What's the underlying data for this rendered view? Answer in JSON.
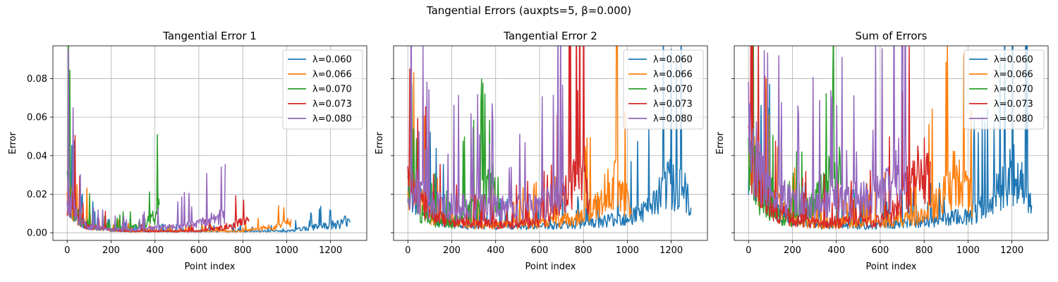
{
  "suptitle": "Tangential Errors (auxpts=5, β=0.000)",
  "series_colors": [
    "#1f77b4",
    "#ff7f0e",
    "#2ca02c",
    "#d62728",
    "#9467bd"
  ],
  "chart_data": [
    {
      "type": "line",
      "title": "Tangential Error 1",
      "xlabel": "Point index",
      "ylabel": "Error",
      "xlim": [
        -65,
        1365
      ],
      "ylim": [
        -0.004,
        0.097
      ],
      "xticks": [
        0,
        200,
        400,
        600,
        800,
        1000,
        1200
      ],
      "yticks": [
        0.0,
        0.02,
        0.04,
        0.06,
        0.08
      ],
      "ytick_labels": [
        "0.00",
        "0.02",
        "0.04",
        "0.06",
        "0.08"
      ],
      "show_yticklabels": true,
      "grid": true,
      "legend": "top-right",
      "series": [
        {
          "name": "λ=0.060",
          "color": "#1f77b4",
          "x": [
            0,
            50,
            100,
            200,
            300,
            400,
            500,
            600,
            700,
            800,
            900,
            1000,
            1050,
            1100,
            1150,
            1200,
            1250,
            1290
          ],
          "y": [
            0.022,
            0.009,
            0.004,
            0.002,
            0.001,
            0.001,
            0.001,
            0.001,
            0.001,
            0.001,
            0.001,
            0.001,
            0.002,
            0.003,
            0.004,
            0.005,
            0.006,
            0.01
          ]
        },
        {
          "name": "λ=0.066",
          "color": "#ff7f0e",
          "x": [
            0,
            50,
            100,
            200,
            300,
            400,
            500,
            600,
            700,
            800,
            850,
            900,
            950,
            1000,
            1020
          ],
          "y": [
            0.025,
            0.01,
            0.004,
            0.002,
            0.001,
            0.001,
            0.001,
            0.001,
            0.001,
            0.001,
            0.002,
            0.003,
            0.004,
            0.006,
            0.008
          ]
        },
        {
          "name": "λ=0.070",
          "color": "#2ca02c",
          "x": [
            0,
            20,
            50,
            100,
            200,
            300,
            350,
            400,
            420
          ],
          "y": [
            0.03,
            0.02,
            0.01,
            0.005,
            0.002,
            0.003,
            0.006,
            0.01,
            0.015
          ]
        },
        {
          "name": "λ=0.073",
          "color": "#d62728",
          "x": [
            0,
            50,
            100,
            200,
            300,
            400,
            500,
            600,
            650,
            700,
            750,
            800,
            830
          ],
          "y": [
            0.024,
            0.008,
            0.004,
            0.002,
            0.001,
            0.001,
            0.001,
            0.001,
            0.002,
            0.003,
            0.005,
            0.007,
            0.01
          ]
        },
        {
          "name": "λ=0.080",
          "color": "#9467bd",
          "x": [
            0,
            30,
            60,
            100,
            200,
            300,
            400,
            500,
            600,
            650,
            700,
            720
          ],
          "y": [
            0.028,
            0.015,
            0.008,
            0.004,
            0.002,
            0.002,
            0.003,
            0.004,
            0.006,
            0.008,
            0.01,
            0.012
          ]
        }
      ]
    },
    {
      "type": "line",
      "title": "Tangential Error 2",
      "xlabel": "Point index",
      "ylabel": "Error",
      "xlim": [
        -65,
        1365
      ],
      "ylim": [
        -0.004,
        0.097
      ],
      "xticks": [
        0,
        200,
        400,
        600,
        800,
        1000,
        1200
      ],
      "yticks": [
        0.0,
        0.02,
        0.04,
        0.06,
        0.08
      ],
      "ytick_labels": [
        "0.00",
        "0.02",
        "0.04",
        "0.06",
        "0.08"
      ],
      "show_yticklabels": false,
      "grid": true,
      "legend": "top-right",
      "series": [
        {
          "name": "λ=0.060",
          "color": "#1f77b4",
          "x": [
            0,
            100,
            200,
            300,
            400,
            500,
            600,
            700,
            800,
            900,
            1000,
            1100,
            1150,
            1200,
            1250,
            1290
          ],
          "y": [
            0.03,
            0.012,
            0.006,
            0.004,
            0.004,
            0.004,
            0.004,
            0.005,
            0.006,
            0.008,
            0.01,
            0.015,
            0.025,
            0.032,
            0.03,
            0.015
          ]
        },
        {
          "name": "λ=0.066",
          "color": "#ff7f0e",
          "x": [
            0,
            100,
            200,
            300,
            400,
            500,
            600,
            700,
            800,
            850,
            900,
            950,
            1000,
            1020
          ],
          "y": [
            0.03,
            0.012,
            0.006,
            0.005,
            0.005,
            0.005,
            0.006,
            0.008,
            0.01,
            0.015,
            0.025,
            0.032,
            0.02,
            0.012
          ]
        },
        {
          "name": "λ=0.070",
          "color": "#2ca02c",
          "x": [
            0,
            50,
            100,
            200,
            300,
            350,
            400,
            420
          ],
          "y": [
            0.03,
            0.015,
            0.008,
            0.006,
            0.015,
            0.025,
            0.03,
            0.02
          ]
        },
        {
          "name": "λ=0.073",
          "color": "#d62728",
          "x": [
            0,
            100,
            200,
            300,
            400,
            500,
            600,
            650,
            700,
            750,
            800,
            830
          ],
          "y": [
            0.03,
            0.012,
            0.007,
            0.006,
            0.006,
            0.006,
            0.007,
            0.01,
            0.02,
            0.03,
            0.035,
            0.02
          ]
        },
        {
          "name": "λ=0.080",
          "color": "#9467bd",
          "x": [
            0,
            50,
            100,
            200,
            300,
            400,
            500,
            600,
            650,
            700,
            720
          ],
          "y": [
            0.035,
            0.025,
            0.018,
            0.016,
            0.016,
            0.016,
            0.016,
            0.017,
            0.02,
            0.028,
            0.025
          ]
        }
      ]
    },
    {
      "type": "line",
      "title": "Sum of Errors",
      "xlabel": "Point index",
      "ylabel": "Error",
      "xlim": [
        -65,
        1365
      ],
      "ylim": [
        -0.004,
        0.097
      ],
      "xticks": [
        0,
        200,
        400,
        600,
        800,
        1000,
        1200
      ],
      "yticks": [
        0.0,
        0.02,
        0.04,
        0.06,
        0.08
      ],
      "ytick_labels": [
        "0.00",
        "0.02",
        "0.04",
        "0.06",
        "0.08"
      ],
      "show_yticklabels": false,
      "grid": true,
      "legend": "top-right",
      "series": [
        {
          "name": "λ=0.060",
          "color": "#1f77b4",
          "x": [
            0,
            100,
            200,
            300,
            400,
            500,
            600,
            700,
            800,
            900,
            1000,
            1100,
            1150,
            1200,
            1250,
            1290
          ],
          "y": [
            0.05,
            0.02,
            0.008,
            0.005,
            0.005,
            0.005,
            0.005,
            0.006,
            0.007,
            0.009,
            0.011,
            0.018,
            0.03,
            0.038,
            0.035,
            0.025
          ]
        },
        {
          "name": "λ=0.066",
          "color": "#ff7f0e",
          "x": [
            0,
            100,
            200,
            300,
            400,
            500,
            600,
            700,
            800,
            850,
            900,
            950,
            1000,
            1020
          ],
          "y": [
            0.055,
            0.022,
            0.008,
            0.006,
            0.006,
            0.006,
            0.007,
            0.009,
            0.011,
            0.017,
            0.028,
            0.038,
            0.025,
            0.018
          ]
        },
        {
          "name": "λ=0.070",
          "color": "#2ca02c",
          "x": [
            0,
            50,
            100,
            200,
            300,
            350,
            400,
            420
          ],
          "y": [
            0.06,
            0.025,
            0.012,
            0.008,
            0.018,
            0.03,
            0.04,
            0.035
          ]
        },
        {
          "name": "λ=0.073",
          "color": "#d62728",
          "x": [
            0,
            100,
            200,
            300,
            400,
            500,
            600,
            650,
            700,
            750,
            800,
            830
          ],
          "y": [
            0.054,
            0.016,
            0.009,
            0.007,
            0.007,
            0.007,
            0.008,
            0.012,
            0.023,
            0.033,
            0.042,
            0.03
          ]
        },
        {
          "name": "λ=0.080",
          "color": "#9467bd",
          "x": [
            0,
            50,
            100,
            200,
            300,
            400,
            500,
            600,
            650,
            700,
            720
          ],
          "y": [
            0.063,
            0.04,
            0.026,
            0.02,
            0.019,
            0.02,
            0.021,
            0.024,
            0.03,
            0.045,
            0.038
          ]
        }
      ]
    }
  ]
}
